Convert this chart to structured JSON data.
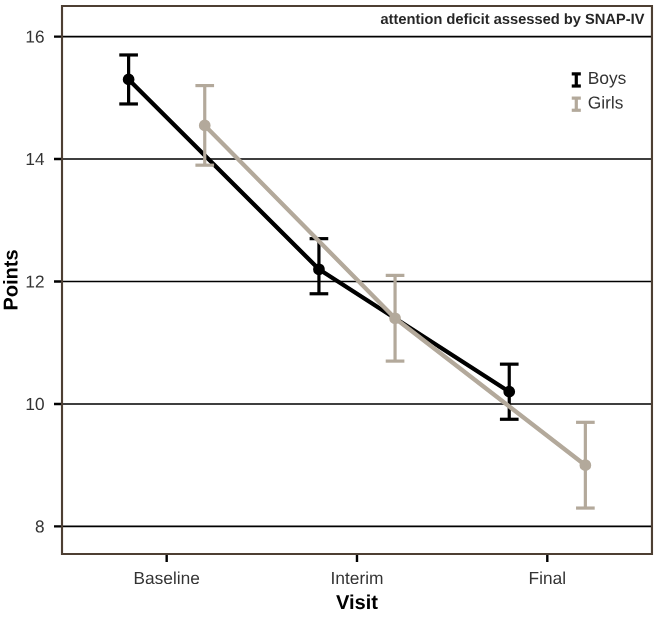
{
  "chart_data": {
    "type": "line",
    "xlabel": "Visit",
    "ylabel": "Points",
    "annotations": [
      "attention deficit assessed by SNAP-IV"
    ],
    "categories": [
      "Baseline",
      "Interim",
      "Final"
    ],
    "series": [
      {
        "name": "Boys",
        "color": "#000000",
        "values": [
          15.3,
          12.2,
          10.2
        ],
        "errors": [
          [
            14.9,
            15.7
          ],
          [
            11.8,
            12.7
          ],
          [
            9.75,
            10.65
          ]
        ]
      },
      {
        "name": "Girls",
        "color": "#b3a99b",
        "values": [
          14.55,
          11.4,
          9.0
        ],
        "errors": [
          [
            13.9,
            15.2
          ],
          [
            10.7,
            12.1
          ],
          [
            8.3,
            9.7
          ]
        ]
      }
    ],
    "ylim": [
      7.55,
      16.5
    ],
    "yticks": [
      8,
      10,
      12,
      14,
      16
    ],
    "grid": "y",
    "legend": "top right",
    "marker": "circle",
    "line_style": "solid"
  }
}
